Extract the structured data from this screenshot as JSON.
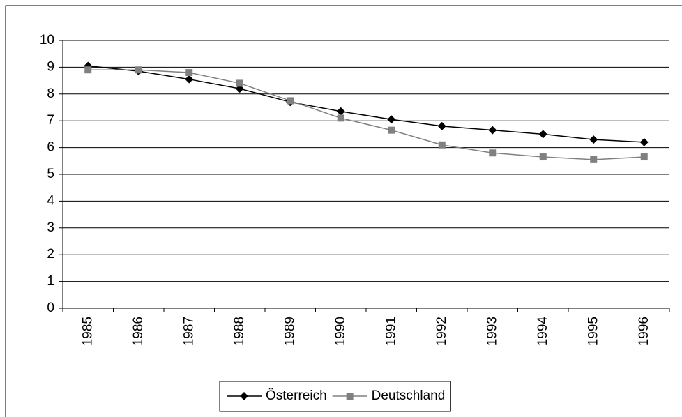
{
  "chart_data": {
    "type": "line",
    "categories": [
      "1985",
      "1986",
      "1987",
      "1988",
      "1989",
      "1990",
      "1991",
      "1992",
      "1993",
      "1994",
      "1995",
      "1996"
    ],
    "series": [
      {
        "name": "Österreich",
        "color": "#000000",
        "marker": "diamond",
        "values": [
          9.05,
          8.85,
          8.55,
          8.2,
          7.7,
          7.35,
          7.05,
          6.8,
          6.65,
          6.5,
          6.3,
          6.2
        ]
      },
      {
        "name": "Deutschland",
        "color": "#808080",
        "marker": "square",
        "values": [
          8.9,
          8.9,
          8.8,
          8.4,
          7.75,
          7.1,
          6.65,
          6.1,
          5.8,
          5.65,
          5.55,
          5.65
        ]
      }
    ],
    "ylim": [
      0,
      10
    ],
    "yticks": [
      0,
      1,
      2,
      3,
      4,
      5,
      6,
      7,
      8,
      9,
      10
    ],
    "grid": true
  }
}
